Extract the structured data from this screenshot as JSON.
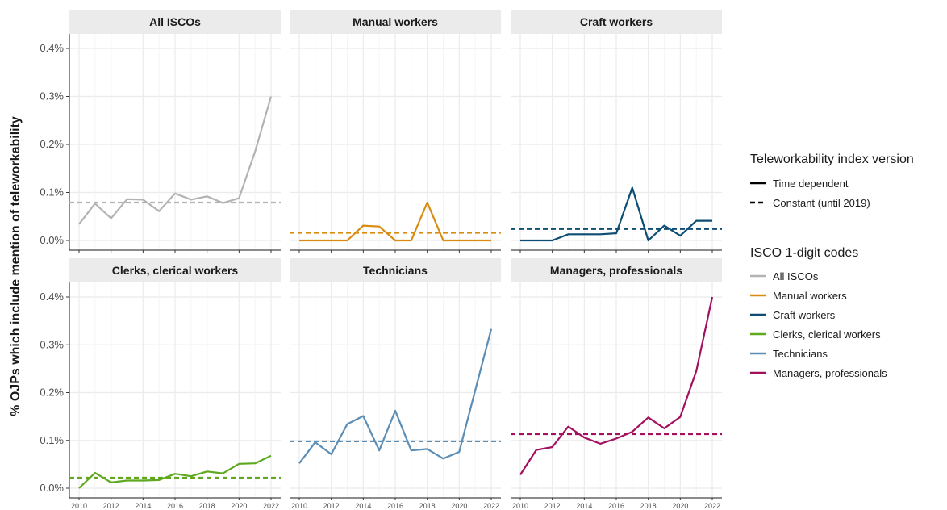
{
  "chart_data": {
    "type": "line",
    "ylabel": "% OJPs which include mention of teleworkability",
    "xlabel": "",
    "x_ticks": [
      2010,
      2012,
      2014,
      2016,
      2018,
      2020,
      2022
    ],
    "x_range": [
      2010,
      2022
    ],
    "ylim": [
      0,
      0.4
    ],
    "y_ticks": [
      0,
      0.1,
      0.2,
      0.3,
      0.4
    ],
    "y_tick_labels": [
      "0.0%",
      "0.1%",
      "0.2%",
      "0.3%",
      "0.4%"
    ],
    "grid": true,
    "legend_position": "right",
    "legend": {
      "linetype_title": "Teleworkability index version",
      "linetype_entries": [
        {
          "label": "Time dependent",
          "style": "solid"
        },
        {
          "label": "Constant (until 2019)",
          "style": "dashed"
        }
      ],
      "color_title": "ISCO 1-digit codes",
      "color_entries": [
        {
          "label": "All ISCOs",
          "color": "#b3b3b3"
        },
        {
          "label": "Manual workers",
          "color": "#d98c0f"
        },
        {
          "label": "Craft workers",
          "color": "#0e4d73"
        },
        {
          "label": "Clerks, clerical workers",
          "color": "#5fa81f"
        },
        {
          "label": "Technicians",
          "color": "#5b8db5"
        },
        {
          "label": "Managers, professionals",
          "color": "#a3105e"
        }
      ]
    },
    "panels": [
      {
        "title": "All ISCOs",
        "color": "#b3b3b3",
        "x": [
          2010,
          2011,
          2012,
          2013,
          2014,
          2015,
          2016,
          2017,
          2018,
          2019,
          2020,
          2021,
          2022
        ],
        "time_dependent": [
          0.034,
          0.077,
          0.046,
          0.086,
          0.085,
          0.061,
          0.098,
          0.085,
          0.092,
          0.078,
          0.088,
          0.185,
          0.3
        ],
        "constant": 0.079
      },
      {
        "title": "Manual workers",
        "color": "#d98c0f",
        "x": [
          2010,
          2011,
          2012,
          2013,
          2014,
          2015,
          2016,
          2017,
          2018,
          2019,
          2020,
          2021,
          2022
        ],
        "time_dependent": [
          0.0,
          0.0,
          0.0,
          0.0,
          0.031,
          0.029,
          0.0,
          0.0,
          0.079,
          0.0,
          0.0,
          0.0,
          0.0
        ],
        "constant": 0.016
      },
      {
        "title": "Craft workers",
        "color": "#0e4d73",
        "x": [
          2010,
          2011,
          2012,
          2013,
          2014,
          2015,
          2016,
          2017,
          2018,
          2019,
          2020,
          2021,
          2022
        ],
        "time_dependent": [
          0.0,
          0.0,
          0.0,
          0.013,
          0.013,
          0.013,
          0.015,
          0.11,
          0.0,
          0.031,
          0.01,
          0.041,
          0.041
        ],
        "constant": 0.024
      },
      {
        "title": "Clerks, clerical workers",
        "color": "#5fa81f",
        "x": [
          2010,
          2011,
          2012,
          2013,
          2014,
          2015,
          2016,
          2017,
          2018,
          2019,
          2020,
          2021,
          2022
        ],
        "time_dependent": [
          0.0,
          0.032,
          0.012,
          0.016,
          0.016,
          0.017,
          0.03,
          0.025,
          0.035,
          0.031,
          0.051,
          0.052,
          0.068
        ],
        "constant": 0.022
      },
      {
        "title": "Technicians",
        "color": "#5b8db5",
        "x": [
          2010,
          2011,
          2012,
          2013,
          2014,
          2015,
          2016,
          2017,
          2018,
          2019,
          2020,
          2021,
          2022
        ],
        "time_dependent": [
          0.052,
          0.096,
          0.071,
          0.134,
          0.151,
          0.079,
          0.162,
          0.079,
          0.082,
          0.062,
          0.076,
          0.205,
          0.333
        ],
        "constant": 0.098
      },
      {
        "title": "Managers, professionals",
        "color": "#a3105e",
        "x": [
          2010,
          2011,
          2012,
          2013,
          2014,
          2015,
          2016,
          2017,
          2018,
          2019,
          2020,
          2021,
          2022
        ],
        "time_dependent": [
          0.028,
          0.08,
          0.086,
          0.129,
          0.106,
          0.093,
          0.104,
          0.118,
          0.148,
          0.125,
          0.149,
          0.245,
          0.4
        ],
        "constant": 0.113
      }
    ]
  }
}
